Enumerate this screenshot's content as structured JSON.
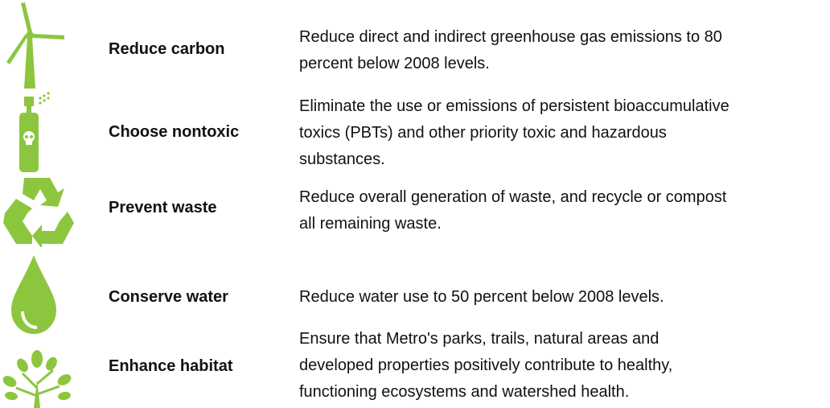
{
  "goals": [
    {
      "title": "Reduce carbon",
      "description_lines": [
        "Reduce direct and indirect greenhouse gas emissions to 80",
        "percent below 2008 levels."
      ]
    },
    {
      "title": "Choose nontoxic",
      "description_lines": [
        "Eliminate the use or emissions of persistent bioaccumulative",
        "toxics (PBTs) and other priority toxic and hazardous",
        "substances."
      ]
    },
    {
      "title": "Prevent waste",
      "description_lines": [
        "Reduce overall generation of waste, and recycle or compost",
        "all remaining waste."
      ]
    },
    {
      "title": "Conserve water",
      "description_lines": [
        "Reduce water use to 50 percent below 2008 levels."
      ]
    },
    {
      "title": "Enhance habitat",
      "description_lines": [
        "Ensure that Metro's parks, trails, natural areas and",
        "developed properties positively contribute to healthy,",
        "functioning ecosystems and watershed health."
      ]
    }
  ]
}
